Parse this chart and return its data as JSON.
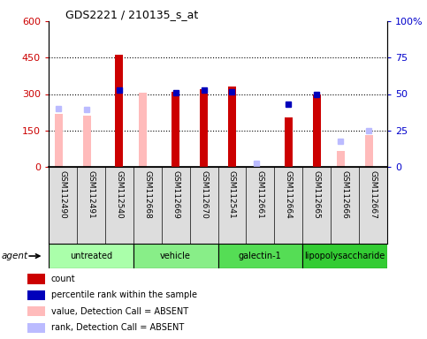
{
  "title": "GDS2221 / 210135_s_at",
  "samples": [
    "GSM112490",
    "GSM112491",
    "GSM112540",
    "GSM112668",
    "GSM112669",
    "GSM112670",
    "GSM112541",
    "GSM112661",
    "GSM112664",
    "GSM112665",
    "GSM112666",
    "GSM112667"
  ],
  "groups": [
    {
      "name": "untreated",
      "indices": [
        0,
        1,
        2
      ],
      "color": "#aaffaa"
    },
    {
      "name": "vehicle",
      "indices": [
        3,
        4,
        5
      ],
      "color": "#88ee88"
    },
    {
      "name": "galectin-1",
      "indices": [
        6,
        7,
        8
      ],
      "color": "#55dd55"
    },
    {
      "name": "lipopolysaccharide",
      "indices": [
        9,
        10,
        11
      ],
      "color": "#33cc33"
    }
  ],
  "count": [
    null,
    null,
    460,
    null,
    310,
    320,
    330,
    null,
    205,
    300,
    null,
    null
  ],
  "percentile_rank_scaled": [
    null,
    null,
    315,
    null,
    305,
    315,
    310,
    null,
    258,
    298,
    null,
    null
  ],
  "value_absent": [
    220,
    210,
    null,
    305,
    null,
    null,
    null,
    null,
    null,
    null,
    65,
    130
  ],
  "rank_absent_scaled": [
    240,
    237,
    null,
    null,
    null,
    null,
    null,
    15,
    null,
    null,
    107,
    150
  ],
  "ylim_left": [
    0,
    600
  ],
  "ylim_right": [
    0,
    100
  ],
  "yticks_left": [
    0,
    150,
    300,
    450,
    600
  ],
  "yticks_right": [
    0,
    25,
    50,
    75,
    100
  ],
  "ytick_labels_left": [
    "0",
    "150",
    "300",
    "450",
    "600"
  ],
  "ytick_labels_right": [
    "0",
    "25",
    "50",
    "75",
    "100%"
  ],
  "left_axis_color": "#cc0000",
  "right_axis_color": "#0000cc",
  "bar_color_count": "#cc0000",
  "bar_color_rank": "#0000bb",
  "bar_color_value_absent": "#ffbbbb",
  "bar_color_rank_absent": "#bbbbff",
  "legend_items": [
    {
      "label": "count",
      "color": "#cc0000"
    },
    {
      "label": "percentile rank within the sample",
      "color": "#0000bb"
    },
    {
      "label": "value, Detection Call = ABSENT",
      "color": "#ffbbbb"
    },
    {
      "label": "rank, Detection Call = ABSENT",
      "color": "#bbbbff"
    }
  ],
  "fig_width": 4.83,
  "fig_height": 3.84,
  "dpi": 100
}
